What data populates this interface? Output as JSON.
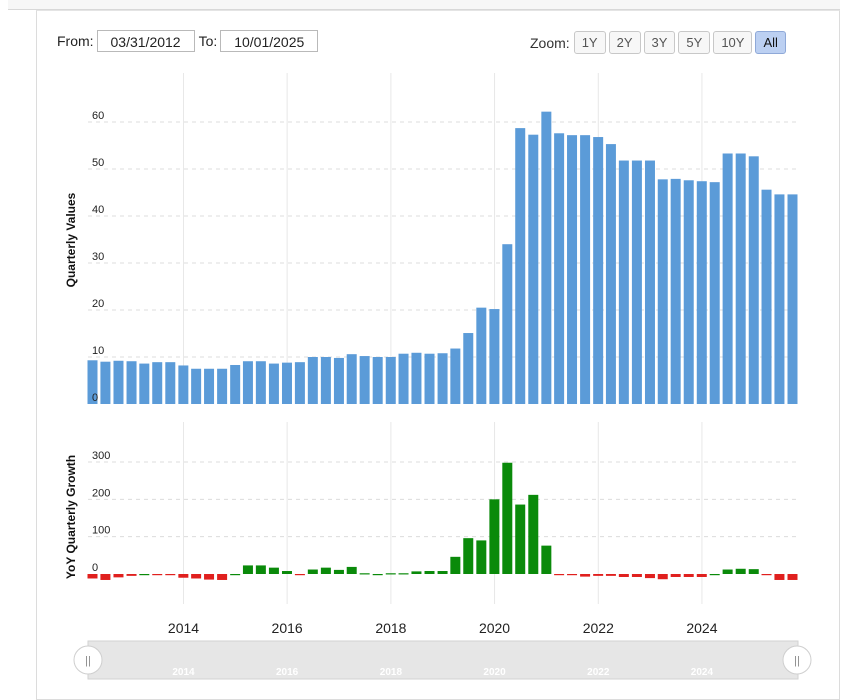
{
  "controls": {
    "from_label": "From:",
    "from_value": "03/31/2012",
    "to_label": "To:",
    "to_value": "10/01/2025",
    "zoom_label": "Zoom:",
    "zoom_buttons": [
      "1Y",
      "2Y",
      "3Y",
      "5Y",
      "10Y",
      "All"
    ],
    "zoom_active": "All"
  },
  "chart_data": [
    {
      "type": "bar",
      "ylabel": "Quarterly Values",
      "ylim": [
        0,
        70
      ],
      "yticks": [
        0,
        10,
        20,
        30,
        40,
        50,
        60
      ],
      "grid": true,
      "color": "#5b9bd8",
      "x": [
        "2012-03-31",
        "2012-06-30",
        "2012-09-30",
        "2012-12-31",
        "2013-03-31",
        "2013-06-30",
        "2013-09-30",
        "2013-12-31",
        "2014-03-31",
        "2014-06-30",
        "2014-09-30",
        "2014-12-31",
        "2015-03-31",
        "2015-06-30",
        "2015-09-30",
        "2015-12-31",
        "2016-03-31",
        "2016-06-30",
        "2016-09-30",
        "2016-12-31",
        "2017-03-31",
        "2017-06-30",
        "2017-09-30",
        "2017-12-31",
        "2018-03-31",
        "2018-06-30",
        "2018-09-30",
        "2018-12-31",
        "2019-03-31",
        "2019-06-30",
        "2019-09-30",
        "2019-12-31",
        "2020-03-31",
        "2020-06-30",
        "2020-09-30",
        "2020-12-31",
        "2021-03-31",
        "2021-06-30",
        "2021-09-30",
        "2021-12-31",
        "2022-03-31",
        "2022-06-30",
        "2022-09-30",
        "2022-12-31",
        "2023-03-31",
        "2023-06-30",
        "2023-09-30",
        "2023-12-31",
        "2024-03-31",
        "2024-06-30",
        "2024-09-30",
        "2024-12-31",
        "2025-03-31",
        "2025-06-30",
        "2025-09-30"
      ],
      "values": [
        9.3,
        9.0,
        9.2,
        9.1,
        8.6,
        8.9,
        8.9,
        8.2,
        7.5,
        7.5,
        7.5,
        8.3,
        9.1,
        9.1,
        8.6,
        8.8,
        8.9,
        10.0,
        10.0,
        9.8,
        10.6,
        10.2,
        10.0,
        10.0,
        10.7,
        10.9,
        10.7,
        10.8,
        11.8,
        15.1,
        20.5,
        20.2,
        34.0,
        58.7,
        57.3,
        62.2,
        57.6,
        57.2,
        57.2,
        56.8,
        55.3,
        51.8,
        51.8,
        51.8,
        47.8,
        47.9,
        47.6,
        47.4,
        47.2,
        53.3,
        53.3,
        52.7,
        45.6,
        44.6,
        44.6
      ]
    },
    {
      "type": "bar",
      "ylabel": "YoY Quarterly Growth",
      "ylim": [
        -30,
        350
      ],
      "yticks": [
        0,
        100,
        200,
        300
      ],
      "grid": true,
      "positive_color": "#0a8a0a",
      "negative_color": "#e0201e",
      "x": [
        "2012-03-31",
        "2012-06-30",
        "2012-09-30",
        "2012-12-31",
        "2013-03-31",
        "2013-06-30",
        "2013-09-30",
        "2013-12-31",
        "2014-03-31",
        "2014-06-30",
        "2014-09-30",
        "2014-12-31",
        "2015-03-31",
        "2015-06-30",
        "2015-09-30",
        "2015-12-31",
        "2016-03-31",
        "2016-06-30",
        "2016-09-30",
        "2016-12-31",
        "2017-03-31",
        "2017-06-30",
        "2017-09-30",
        "2017-12-31",
        "2018-03-31",
        "2018-06-30",
        "2018-09-30",
        "2018-12-31",
        "2019-03-31",
        "2019-06-30",
        "2019-09-30",
        "2019-12-31",
        "2020-03-31",
        "2020-06-30",
        "2020-09-30",
        "2020-12-31",
        "2021-03-31",
        "2021-06-30",
        "2021-09-30",
        "2021-12-31",
        "2022-03-31",
        "2022-06-30",
        "2022-09-30",
        "2022-12-31",
        "2023-03-31",
        "2023-06-30",
        "2023-09-30",
        "2023-12-31",
        "2024-03-31",
        "2024-06-30",
        "2024-09-30",
        "2024-12-31",
        "2025-03-31",
        "2025-06-30",
        "2025-09-30"
      ],
      "values": [
        -12,
        -16,
        -9,
        -5,
        0,
        -3,
        -3,
        -10,
        -12,
        -15,
        -16,
        0,
        23,
        23,
        17,
        8,
        -2,
        12,
        17,
        11,
        19,
        2,
        0,
        2,
        2,
        7,
        8,
        8,
        46,
        96,
        90,
        200,
        298,
        186,
        212,
        76,
        -2,
        -3,
        -7,
        -5,
        -5,
        -8,
        -8,
        -11,
        -14,
        -8,
        -8,
        -8,
        0,
        12,
        14,
        13,
        -2,
        -16,
        -16
      ]
    }
  ],
  "xaxis": {
    "tick_labels": [
      "2014",
      "2016",
      "2018",
      "2020",
      "2022",
      "2024"
    ],
    "start": "2012-03-31",
    "end": "2025-09-30"
  },
  "navigator": {
    "tick_labels": [
      "2014",
      "2016",
      "2018",
      "2020",
      "2022",
      "2024"
    ],
    "handle_left_glyph": "||",
    "handle_right_glyph": "||"
  }
}
